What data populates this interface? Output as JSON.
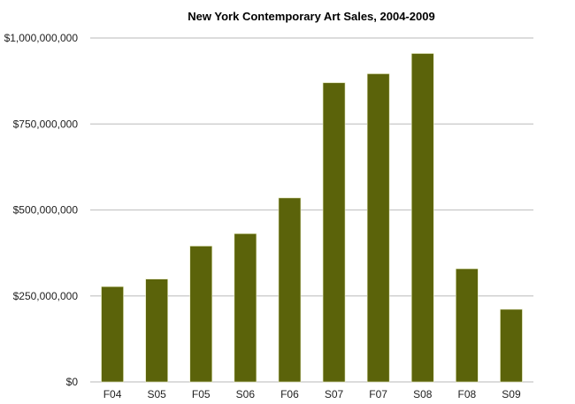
{
  "chart_data": {
    "type": "bar",
    "title": "New York Contemporary Art Sales, 2004-2009",
    "xlabel": "",
    "ylabel": "",
    "categories": [
      "F04",
      "S05",
      "F05",
      "S06",
      "F06",
      "S07",
      "F07",
      "S08",
      "F08",
      "S09"
    ],
    "values": [
      277000000,
      299000000,
      395000000,
      431000000,
      535000000,
      870000000,
      896000000,
      955000000,
      329000000,
      211000000
    ],
    "ylim": [
      0,
      1000000000
    ],
    "yticks": [
      0,
      250000000,
      500000000,
      750000000,
      1000000000
    ],
    "ytick_labels": [
      "$0",
      "$250,000,000",
      "$500,000,000",
      "$750,000,000",
      "$1,000,000,000"
    ],
    "grid": true,
    "legend": "none",
    "colors": {
      "bar": "#5b630a",
      "bar_edge": "#e8ecc0",
      "grid": "#c8c8c8"
    }
  }
}
